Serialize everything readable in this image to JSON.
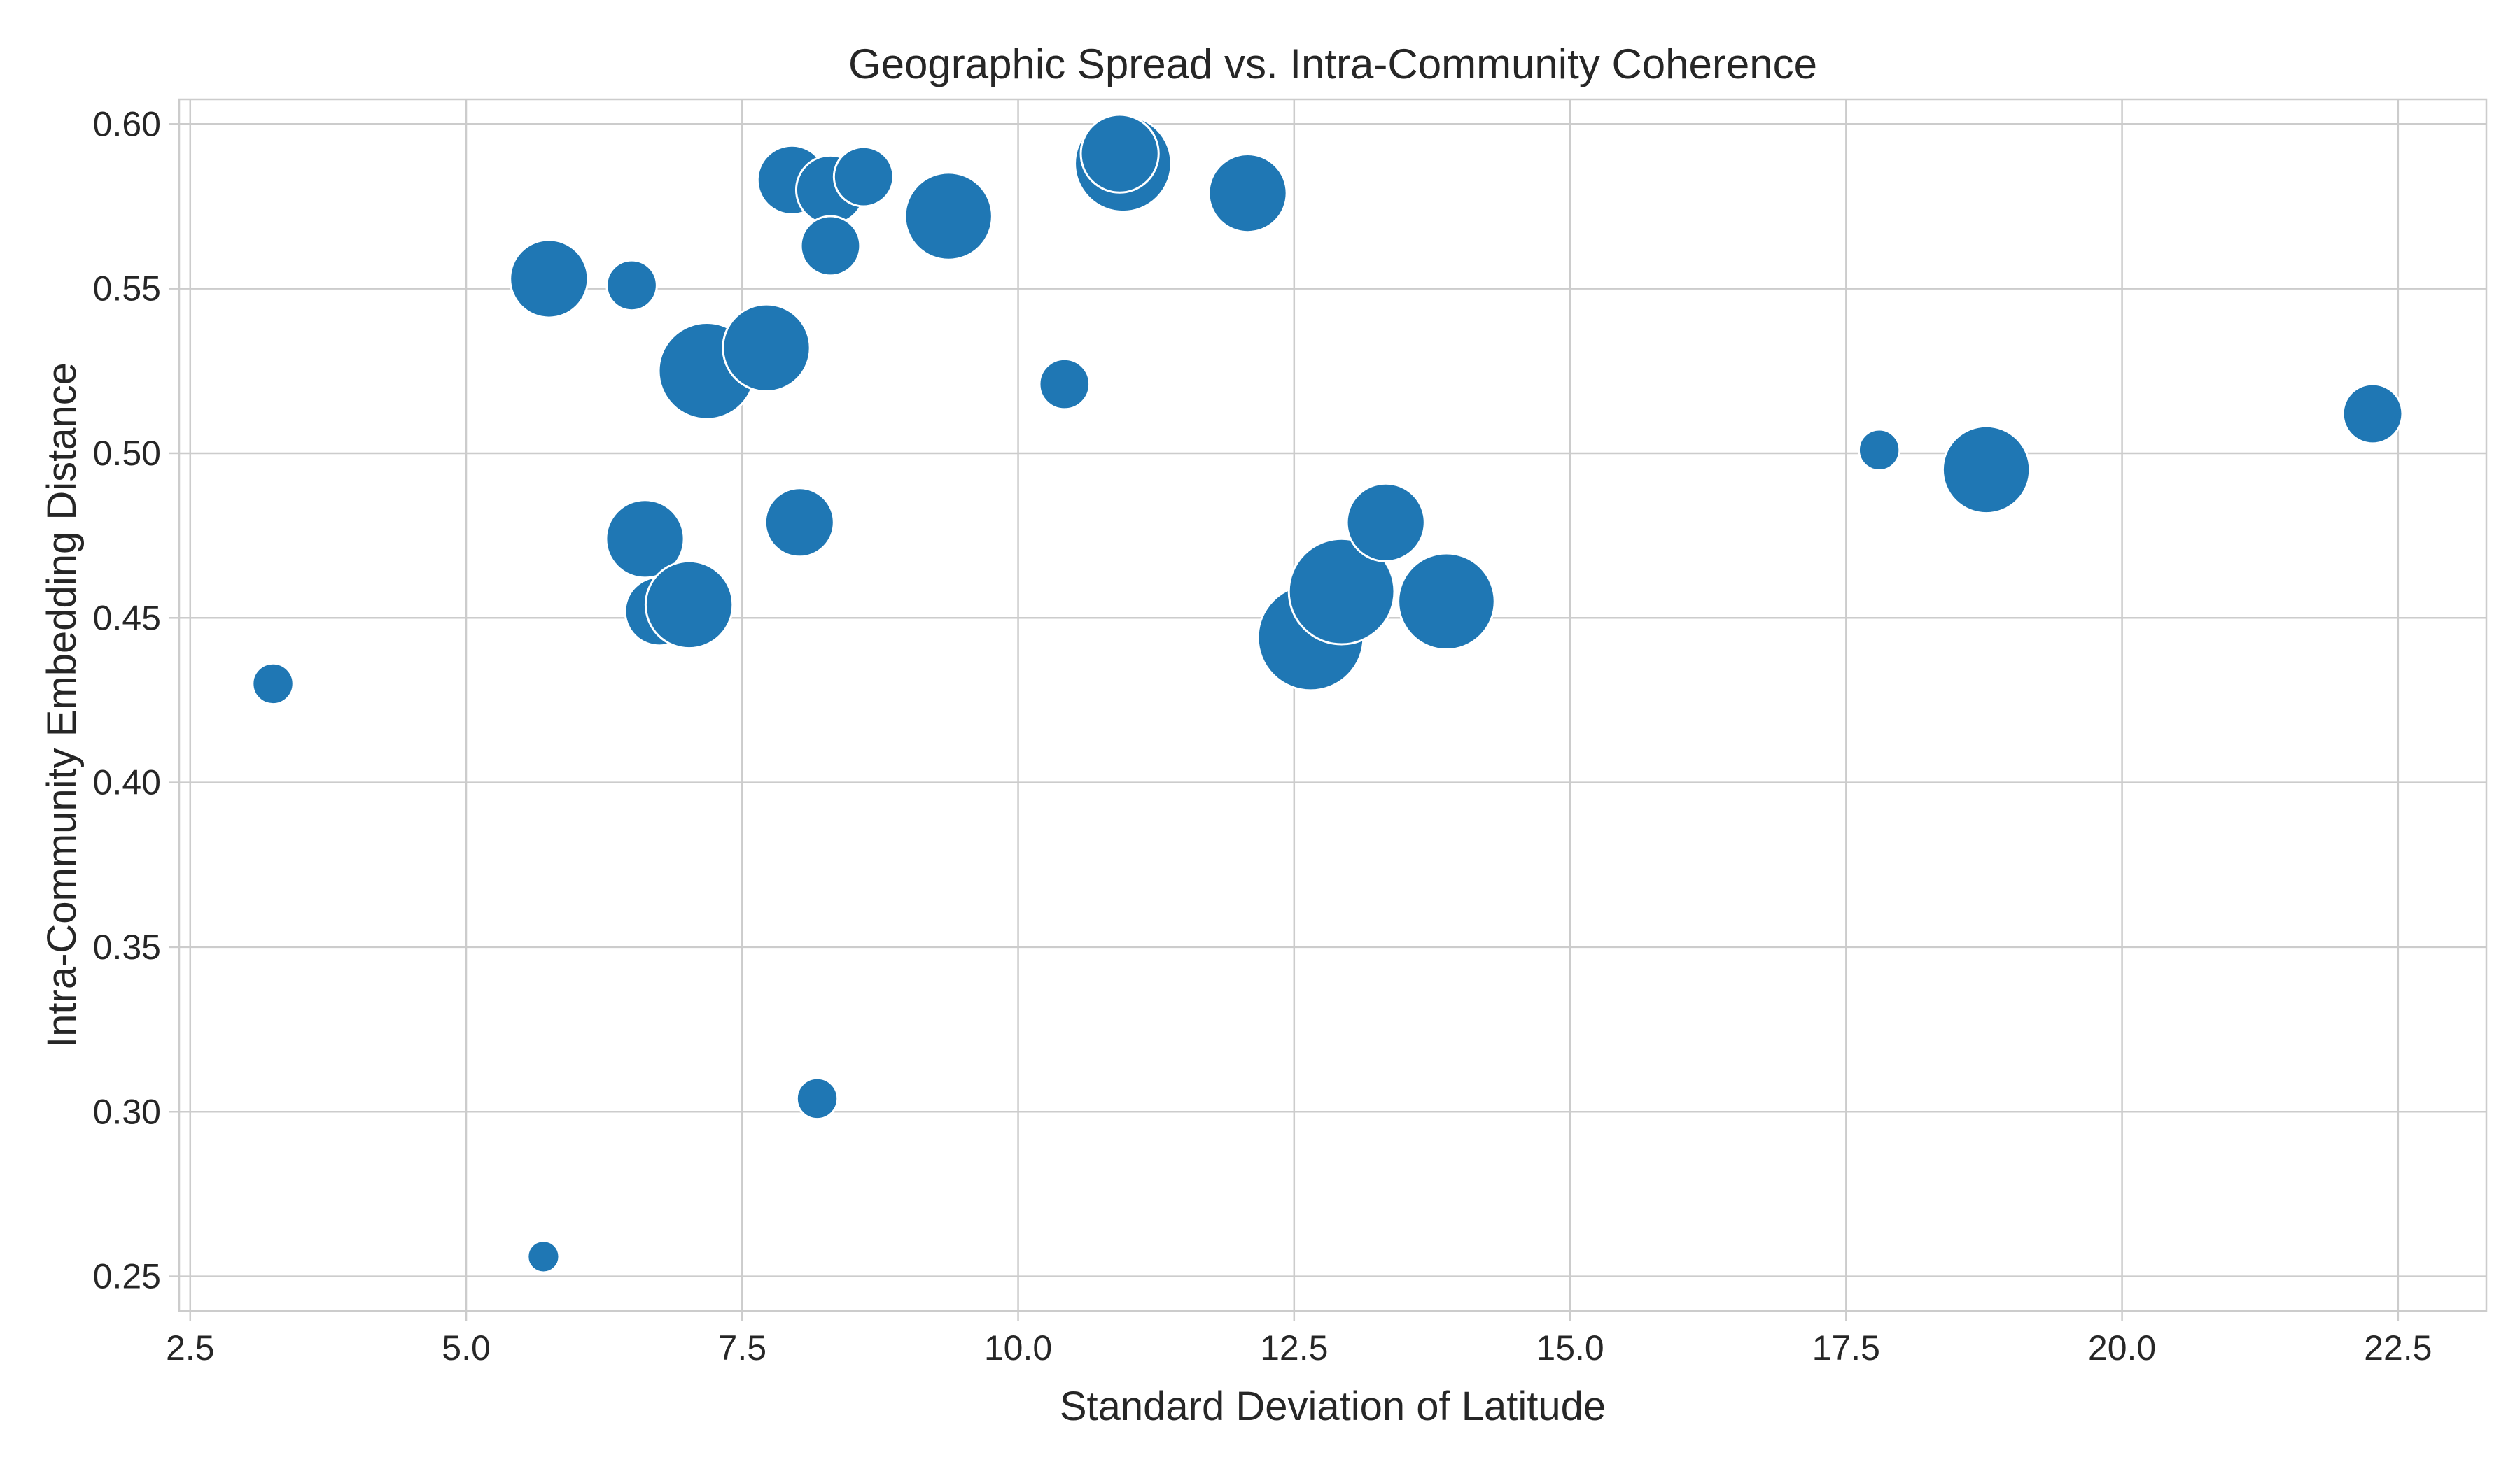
{
  "chart_data": {
    "type": "scatter",
    "title": "Geographic Spread vs. Intra-Community Coherence",
    "xlabel": "Standard Deviation of Latitude",
    "ylabel": "Intra-Community Embedding Distance",
    "xlim": [
      2.4,
      23.3
    ],
    "ylim": [
      0.2395,
      0.6075
    ],
    "xticks": [
      2.5,
      5.0,
      7.5,
      10.0,
      12.5,
      15.0,
      17.5,
      20.0,
      22.5
    ],
    "xtick_labels": [
      "2.5",
      "5.0",
      "7.5",
      "10.0",
      "12.5",
      "15.0",
      "17.5",
      "20.0",
      "22.5"
    ],
    "yticks": [
      0.25,
      0.3,
      0.35,
      0.4,
      0.45,
      0.5,
      0.55,
      0.6
    ],
    "ytick_labels": [
      "0.25",
      "0.30",
      "0.35",
      "0.40",
      "0.45",
      "0.50",
      "0.55",
      "0.60"
    ],
    "grid": true,
    "legend": "none",
    "marker_color": "#1f77b4",
    "edge_color": "#ffffff",
    "size_encoding": "relative marker size (unlabeled)",
    "points": [
      {
        "x": 3.25,
        "y": 0.43,
        "size": 2
      },
      {
        "x": 5.7,
        "y": 0.256,
        "size": 1
      },
      {
        "x": 5.75,
        "y": 0.553,
        "size": 6
      },
      {
        "x": 6.5,
        "y": 0.551,
        "size": 3
      },
      {
        "x": 6.62,
        "y": 0.474,
        "size": 6
      },
      {
        "x": 6.75,
        "y": 0.452,
        "size": 5
      },
      {
        "x": 7.02,
        "y": 0.454,
        "size": 7
      },
      {
        "x": 7.18,
        "y": 0.525,
        "size": 8
      },
      {
        "x": 7.72,
        "y": 0.532,
        "size": 7
      },
      {
        "x": 7.95,
        "y": 0.583,
        "size": 5
      },
      {
        "x": 8.02,
        "y": 0.479,
        "size": 5
      },
      {
        "x": 8.18,
        "y": 0.304,
        "size": 2
      },
      {
        "x": 8.3,
        "y": 0.58,
        "size": 5
      },
      {
        "x": 8.3,
        "y": 0.563,
        "size": 4
      },
      {
        "x": 8.6,
        "y": 0.584,
        "size": 4
      },
      {
        "x": 9.37,
        "y": 0.572,
        "size": 7
      },
      {
        "x": 10.42,
        "y": 0.521,
        "size": 3
      },
      {
        "x": 10.95,
        "y": 0.588,
        "size": 8
      },
      {
        "x": 10.92,
        "y": 0.591,
        "size": 6
      },
      {
        "x": 12.08,
        "y": 0.579,
        "size": 6
      },
      {
        "x": 12.65,
        "y": 0.444,
        "size": 9
      },
      {
        "x": 12.93,
        "y": 0.458,
        "size": 9
      },
      {
        "x": 13.33,
        "y": 0.479,
        "size": 6
      },
      {
        "x": 13.88,
        "y": 0.455,
        "size": 8
      },
      {
        "x": 17.8,
        "y": 0.501,
        "size": 2
      },
      {
        "x": 18.77,
        "y": 0.495,
        "size": 7
      },
      {
        "x": 22.27,
        "y": 0.512,
        "size": 4
      }
    ]
  }
}
